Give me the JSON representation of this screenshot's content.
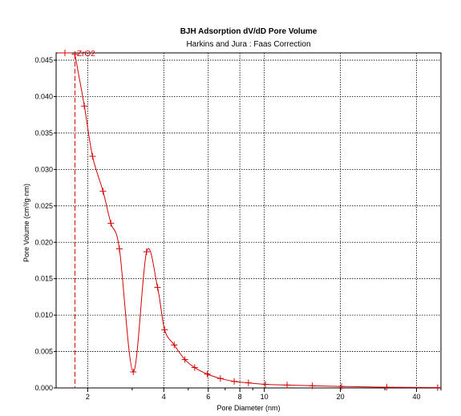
{
  "chart_data": {
    "type": "line",
    "title": "BJH Adsorption dV/dD Pore Volume",
    "subtitle": "Harkins and Jura : Faas Correction",
    "xlabel": "Pore Diameter (nm)",
    "ylabel": "Pore Volume (cm³/g·nm)",
    "x_scale": "log",
    "xlim": [
      1.5,
      50
    ],
    "ylim": [
      0,
      0.046
    ],
    "x_ticks": [
      2,
      4,
      6,
      8,
      10,
      20,
      40
    ],
    "y_ticks": [
      "0.000",
      "0.005",
      "0.010",
      "0.015",
      "0.020",
      "0.025",
      "0.030",
      "0.035",
      "0.040",
      "0.045"
    ],
    "grid": true,
    "legend_position": "top-left",
    "series": [
      {
        "name": "ZrO2",
        "color": "#d40000",
        "marker": "+",
        "points": [
          [
            1.78,
            0.0458
          ],
          [
            1.94,
            0.0387
          ],
          [
            2.09,
            0.0318
          ],
          [
            2.3,
            0.027
          ],
          [
            2.47,
            0.0226
          ],
          [
            2.67,
            0.0191
          ],
          [
            3.03,
            0.0022
          ],
          [
            3.42,
            0.0187
          ],
          [
            3.78,
            0.0138
          ],
          [
            4.03,
            0.008
          ],
          [
            4.4,
            0.0059
          ],
          [
            4.85,
            0.0039
          ],
          [
            5.3,
            0.0028
          ],
          [
            5.95,
            0.0019
          ],
          [
            6.7,
            0.0013
          ],
          [
            7.6,
            0.0009
          ],
          [
            8.65,
            0.0007
          ],
          [
            10.1,
            0.0005
          ],
          [
            12.3,
            0.0004
          ],
          [
            15.5,
            0.0003
          ],
          [
            20.2,
            0.0002
          ],
          [
            30.5,
            0.0001
          ],
          [
            48.5,
            5e-05
          ]
        ]
      }
    ]
  }
}
